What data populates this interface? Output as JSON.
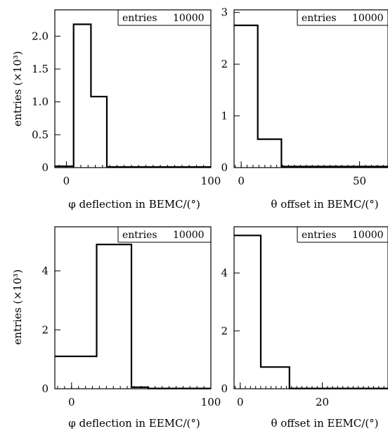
{
  "chart_data": [
    {
      "type": "bar",
      "title": "",
      "xlabel": "φ deflection in BEMC/(°)",
      "ylabel": "entries (×10³)",
      "stats": {
        "label": "entries",
        "value": "10000"
      },
      "xlim": [
        -8,
        100
      ],
      "ylim": [
        0,
        2.4
      ],
      "xticks": [
        0,
        100
      ],
      "xtick_labels": [
        "0",
        "100"
      ],
      "yticks": [
        0,
        0.5,
        1.0,
        1.5,
        2.0
      ],
      "ytick_labels": [
        "0",
        "0.5",
        "1.0",
        "1.5",
        "2.0"
      ],
      "bins": [
        [
          -8,
          5
        ],
        [
          5,
          17
        ],
        [
          17,
          28
        ],
        [
          28,
          100
        ]
      ],
      "values": [
        0.02,
        2.18,
        1.08,
        0.01
      ]
    },
    {
      "type": "bar",
      "title": "",
      "xlabel": "θ offset in BEMC/(°)",
      "ylabel": "",
      "stats": {
        "label": "entries",
        "value": "10000"
      },
      "xlim": [
        -3,
        62
      ],
      "ylim": [
        0,
        3.05
      ],
      "xticks": [
        0,
        50
      ],
      "xtick_labels": [
        "0",
        "50"
      ],
      "yticks": [
        0,
        1,
        2,
        3
      ],
      "ytick_labels": [
        "0",
        "1",
        "2",
        "3"
      ],
      "bins": [
        [
          -3,
          7
        ],
        [
          7,
          17
        ],
        [
          17,
          62
        ]
      ],
      "values": [
        2.75,
        0.55,
        0.02
      ]
    },
    {
      "type": "bar",
      "title": "",
      "xlabel": "φ deflection in EEMC/(°)",
      "ylabel": "entries (×10³)",
      "stats": {
        "label": "entries",
        "value": "10000"
      },
      "xlim": [
        -12,
        100
      ],
      "ylim": [
        0,
        5.5
      ],
      "xticks": [
        0,
        100
      ],
      "xtick_labels": [
        "0",
        "100"
      ],
      "yticks": [
        0,
        2,
        4
      ],
      "ytick_labels": [
        "0",
        "2",
        "4"
      ],
      "bins": [
        [
          -12,
          18
        ],
        [
          18,
          43
        ],
        [
          43,
          55
        ],
        [
          55,
          100
        ]
      ],
      "values": [
        1.1,
        4.9,
        0.05,
        0.01
      ]
    },
    {
      "type": "bar",
      "title": "",
      "xlabel": "θ offset in EEMC/(°)",
      "ylabel": "",
      "stats": {
        "label": "entries",
        "value": "10000"
      },
      "xlim": [
        -1.5,
        36
      ],
      "ylim": [
        0,
        5.6
      ],
      "xticks": [
        0,
        20
      ],
      "xtick_labels": [
        "0",
        "20"
      ],
      "yticks": [
        0,
        2,
        4
      ],
      "ytick_labels": [
        "0",
        "2",
        "4"
      ],
      "bins": [
        [
          -1.5,
          5
        ],
        [
          5,
          12
        ],
        [
          12,
          36
        ]
      ],
      "values": [
        5.3,
        0.75,
        0.01
      ]
    }
  ]
}
